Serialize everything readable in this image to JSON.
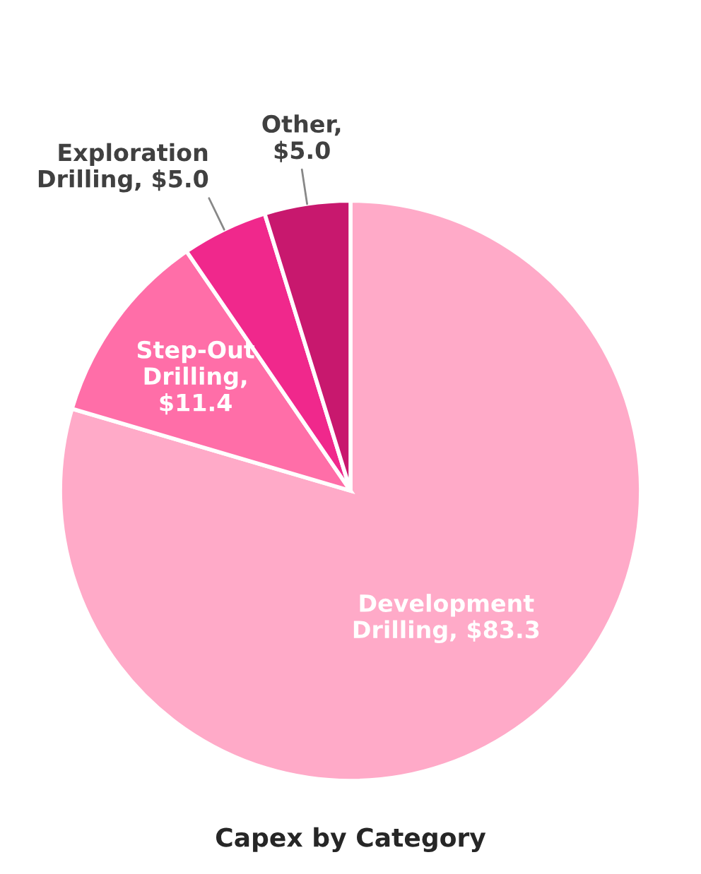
{
  "chart_data": {
    "type": "pie",
    "title": "Capex by Category",
    "categories": [
      "Development Drilling, $83.3",
      "Step-Out Drilling, $11.4",
      "Exploration Drilling, $5.0",
      "Other, $5.0"
    ],
    "values": [
      83.3,
      11.4,
      5.0,
      5.0
    ],
    "colors": [
      "#ffaac8",
      "#ff6ea8",
      "#f0288c",
      "#c8186e"
    ],
    "legend": false
  }
}
